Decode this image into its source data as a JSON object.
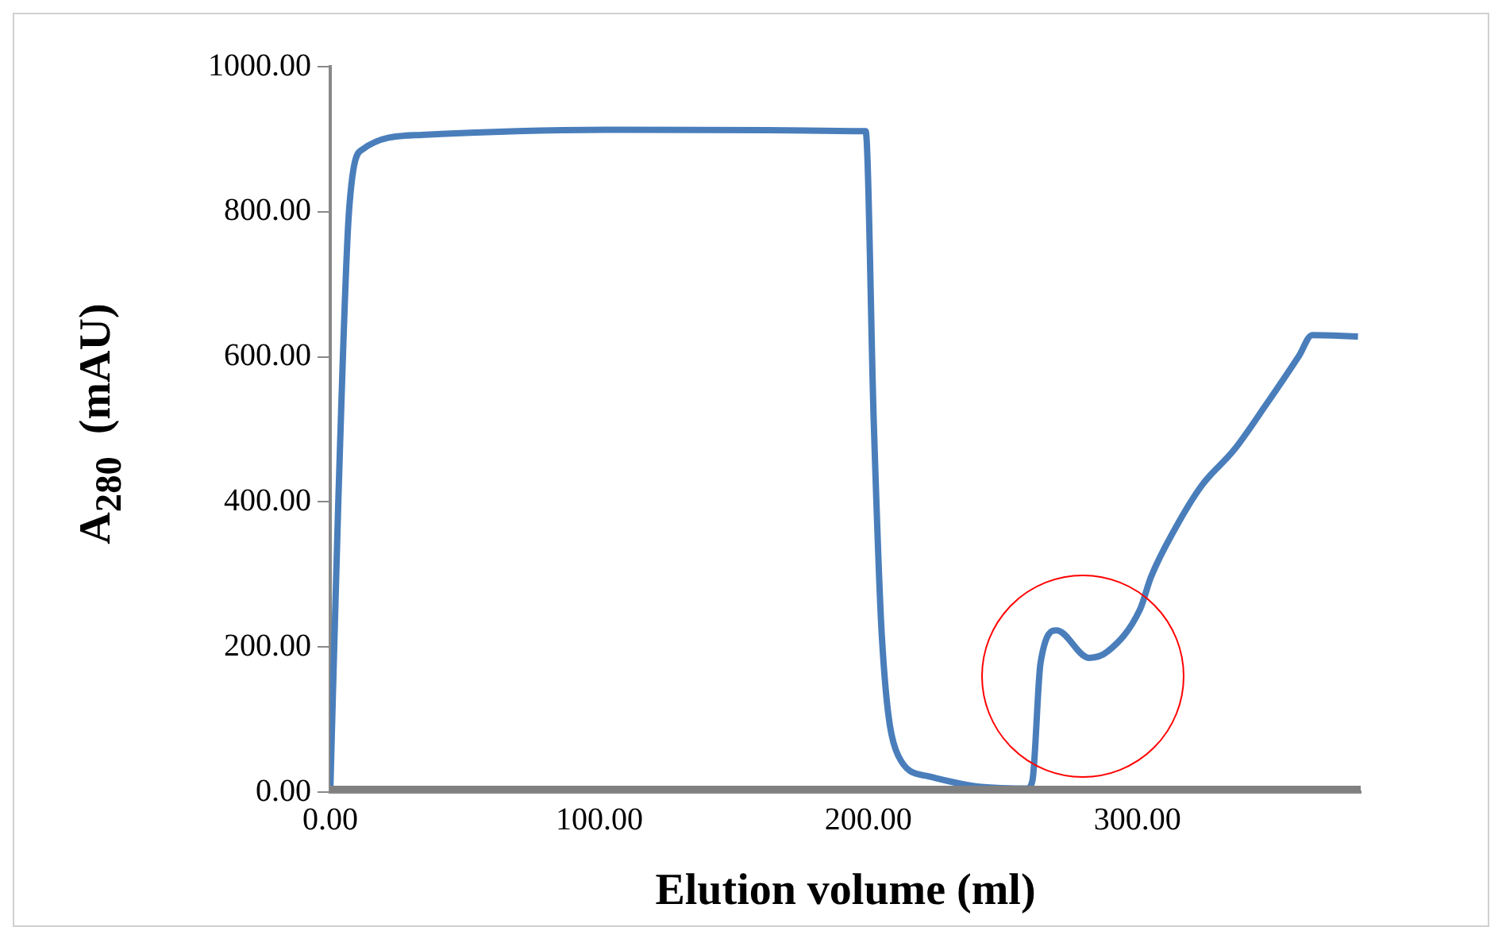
{
  "chart_data": {
    "type": "line",
    "xlabel": "Elution volume (ml)",
    "ylabel": "A$_{280}$  (mAU)",
    "xlim": [
      0,
      383
    ],
    "ylim": [
      0,
      1000
    ],
    "xticks": [
      {
        "value": 0,
        "label": "0.00"
      },
      {
        "value": 100,
        "label": "100.00"
      },
      {
        "value": 200,
        "label": "200.00"
      },
      {
        "value": 300,
        "label": "300.00"
      }
    ],
    "yticks": [
      {
        "value": 0,
        "label": "0.00"
      },
      {
        "value": 200,
        "label": "200.00"
      },
      {
        "value": 400,
        "label": "400.00"
      },
      {
        "value": 600,
        "label": "600.00"
      },
      {
        "value": 800,
        "label": "800.00"
      },
      {
        "value": 1000,
        "label": "1000.00"
      }
    ],
    "grid": false,
    "legend": false,
    "marker": "none",
    "line_style": "solid",
    "series": [
      {
        "color": "#808080",
        "x": [
          0,
          383
        ],
        "values": [
          0,
          0
        ]
      },
      {
        "color": "#4a7ebb",
        "x": [
          0,
          3,
          7,
          12,
          34,
          106,
          199,
          202,
          205,
          211,
          222,
          242,
          259,
          261,
          264,
          270,
          282,
          289,
          301,
          305,
          314,
          324,
          336,
          348,
          360,
          365,
          382
        ],
        "values": [
          0,
          401,
          802,
          886,
          906,
          913,
          911,
          512,
          216,
          51,
          22,
          7,
          5,
          16,
          178,
          223,
          185,
          194,
          252,
          296,
          363,
          423,
          472,
          535,
          601,
          630,
          628
        ]
      }
    ]
  }
}
